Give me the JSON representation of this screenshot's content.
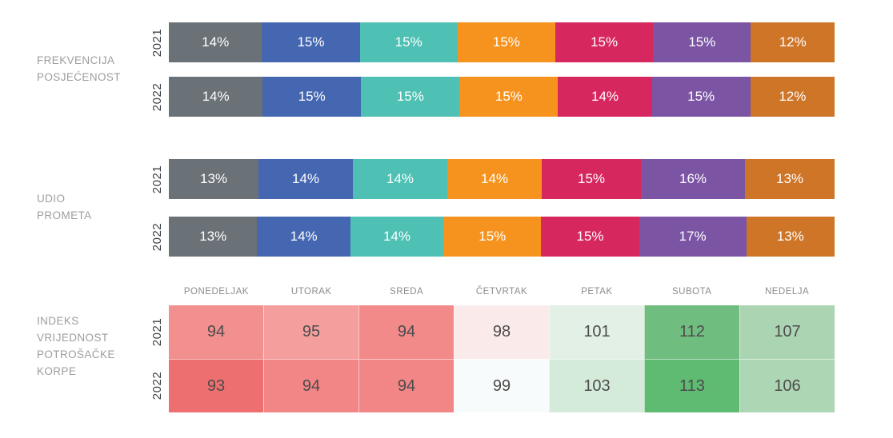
{
  "colors": {
    "segments": [
      "#6A7177",
      "#4567B1",
      "#4EC0B4",
      "#F6931E",
      "#D7275F",
      "#7B54A4",
      "#CE7528"
    ],
    "bar_text": "#FFFFFF",
    "section_label": "#9D9D9D",
    "year_label": "#3D4145",
    "day_label": "#8C8C8C",
    "heat_value": "#4C4C4C"
  },
  "chart_data": [
    {
      "type": "bar",
      "stacked": true,
      "orientation": "horizontal",
      "title": "FREKVENCIJA POSJEĆENOST",
      "title_lines": "FREKVENCIJA\nPOSJEĆENOST",
      "unit": "%",
      "categories": [
        "2021",
        "2022"
      ],
      "rows": [
        {
          "year": "2021",
          "values": [
            14,
            15,
            15,
            15,
            15,
            15,
            12
          ]
        },
        {
          "year": "2022",
          "values": [
            14,
            15,
            15,
            15,
            14,
            15,
            12
          ]
        }
      ]
    },
    {
      "type": "bar",
      "stacked": true,
      "orientation": "horizontal",
      "title": "UDIO PROMETA",
      "title_lines": "UDIO\nPROMETA",
      "unit": "%",
      "categories": [
        "2021",
        "2022"
      ],
      "rows": [
        {
          "year": "2021",
          "values": [
            13,
            14,
            14,
            14,
            15,
            16,
            13
          ]
        },
        {
          "year": "2022",
          "values": [
            13,
            14,
            14,
            15,
            15,
            17,
            13
          ]
        }
      ]
    },
    {
      "type": "heatmap",
      "title": "INDEKS VRIJEDNOST POTROŠAČKE KORPE",
      "title_lines": "INDEKS\nVRIJEDNOST\nPOTROŠAČKE\nKORPE",
      "x_labels": [
        "PONEDELJAK",
        "UTORAK",
        "SREDA",
        "ČETVRTAK",
        "PETAK",
        "SUBOTA",
        "NEDELJA"
      ],
      "y_labels": [
        "2021",
        "2022"
      ],
      "rows": [
        {
          "year": "2021",
          "values": [
            94,
            95,
            94,
            98,
            101,
            112,
            107
          ],
          "cell_colors": [
            "#F28F8F",
            "#F59E9E",
            "#F28A8A",
            "#FBEAEA",
            "#E3F0E6",
            "#6FBE7F",
            "#ABD5B2"
          ]
        },
        {
          "year": "2022",
          "values": [
            93,
            94,
            94,
            99,
            103,
            113,
            106
          ],
          "cell_colors": [
            "#EE6F6F",
            "#F28585",
            "#F28585",
            "#F8FBFB",
            "#D5EBDA",
            "#5FBA72",
            "#ADD6B4"
          ]
        }
      ]
    }
  ]
}
